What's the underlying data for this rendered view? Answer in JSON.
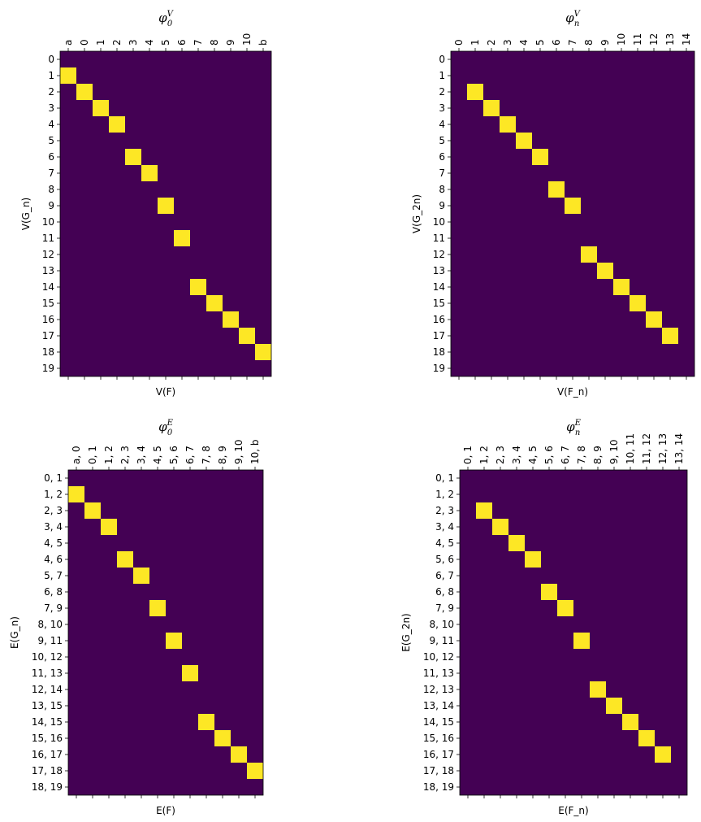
{
  "colors": {
    "off": "#440154",
    "on": "#fde725"
  },
  "chart_data": [
    {
      "type": "heatmap",
      "title": {
        "base": "φ",
        "sub": "0",
        "sup": "V"
      },
      "xlabel": "V(F)",
      "ylabel": "V(G_n)",
      "x_ticks_position": "top",
      "x_labels": [
        "a",
        "0",
        "1",
        "2",
        "3",
        "4",
        "5",
        "6",
        "7",
        "8",
        "9",
        "10",
        "b"
      ],
      "y_labels": [
        "0",
        "1",
        "2",
        "3",
        "4",
        "5",
        "6",
        "7",
        "8",
        "9",
        "10",
        "11",
        "12",
        "13",
        "14",
        "15",
        "16",
        "17",
        "18",
        "19"
      ],
      "cells": [
        [
          1,
          0
        ],
        [
          2,
          1
        ],
        [
          3,
          2
        ],
        [
          4,
          3
        ],
        [
          6,
          4
        ],
        [
          7,
          5
        ],
        [
          9,
          6
        ],
        [
          11,
          7
        ],
        [
          14,
          8
        ],
        [
          15,
          9
        ],
        [
          16,
          10
        ],
        [
          17,
          11
        ],
        [
          18,
          12
        ]
      ]
    },
    {
      "type": "heatmap",
      "title": {
        "base": "φ",
        "sub": "n",
        "sup": "V"
      },
      "xlabel": "V(F_n)",
      "ylabel": "V(G_2n)",
      "x_ticks_position": "top",
      "x_labels": [
        "0",
        "1",
        "2",
        "3",
        "4",
        "5",
        "6",
        "7",
        "8",
        "9",
        "10",
        "11",
        "12",
        "13",
        "14"
      ],
      "y_labels": [
        "0",
        "1",
        "2",
        "3",
        "4",
        "5",
        "6",
        "7",
        "8",
        "9",
        "10",
        "11",
        "12",
        "13",
        "14",
        "15",
        "16",
        "17",
        "18",
        "19"
      ],
      "cells": [
        [
          2,
          1
        ],
        [
          3,
          2
        ],
        [
          4,
          3
        ],
        [
          5,
          4
        ],
        [
          6,
          5
        ],
        [
          8,
          6
        ],
        [
          9,
          7
        ],
        [
          12,
          8
        ],
        [
          13,
          9
        ],
        [
          14,
          10
        ],
        [
          15,
          11
        ],
        [
          16,
          12
        ],
        [
          17,
          13
        ]
      ]
    },
    {
      "type": "heatmap",
      "title": {
        "base": "φ",
        "sub": "0",
        "sup": "E"
      },
      "xlabel": "E(F)",
      "ylabel": "E(G_n)",
      "x_ticks_position": "top",
      "x_labels": [
        "a, 0",
        "0, 1",
        "1, 2",
        "2, 3",
        "3, 4",
        "4, 5",
        "5, 6",
        "6, 7",
        "7, 8",
        "8, 9",
        "9, 10",
        "10, b"
      ],
      "y_labels": [
        "0, 1",
        "1, 2",
        "2, 3",
        "3, 4",
        "4, 5",
        "4, 6",
        "5, 7",
        "6, 8",
        "7, 9",
        "8, 10",
        "9, 11",
        "10, 12",
        "11, 13",
        "12, 14",
        "13, 15",
        "14, 15",
        "15, 16",
        "16, 17",
        "17, 18",
        "18, 19"
      ],
      "cells": [
        [
          1,
          0
        ],
        [
          2,
          1
        ],
        [
          3,
          2
        ],
        [
          5,
          3
        ],
        [
          6,
          4
        ],
        [
          8,
          5
        ],
        [
          10,
          6
        ],
        [
          12,
          7
        ],
        [
          15,
          8
        ],
        [
          16,
          9
        ],
        [
          17,
          10
        ],
        [
          18,
          11
        ]
      ]
    },
    {
      "type": "heatmap",
      "title": {
        "base": "φ",
        "sub": "n",
        "sup": "E"
      },
      "xlabel": "E(F_n)",
      "ylabel": "E(G_2n)",
      "x_ticks_position": "top",
      "x_labels": [
        "0, 1",
        "1, 2",
        "2, 3",
        "3, 4",
        "4, 5",
        "5, 6",
        "6, 7",
        "7, 8",
        "8, 9",
        "9, 10",
        "10, 11",
        "11, 12",
        "12, 13",
        "13, 14"
      ],
      "y_labels": [
        "0, 1",
        "1, 2",
        "2, 3",
        "3, 4",
        "4, 5",
        "5, 6",
        "6, 7",
        "6, 8",
        "7, 9",
        "8, 10",
        "9, 11",
        "10, 12",
        "11, 13",
        "12, 13",
        "13, 14",
        "14, 15",
        "15, 16",
        "16, 17",
        "17, 18",
        "18, 19"
      ],
      "cells": [
        [
          2,
          1
        ],
        [
          3,
          2
        ],
        [
          4,
          3
        ],
        [
          5,
          4
        ],
        [
          7,
          5
        ],
        [
          8,
          6
        ],
        [
          10,
          7
        ],
        [
          13,
          8
        ],
        [
          14,
          9
        ],
        [
          15,
          10
        ],
        [
          16,
          11
        ],
        [
          17,
          12
        ]
      ]
    }
  ]
}
